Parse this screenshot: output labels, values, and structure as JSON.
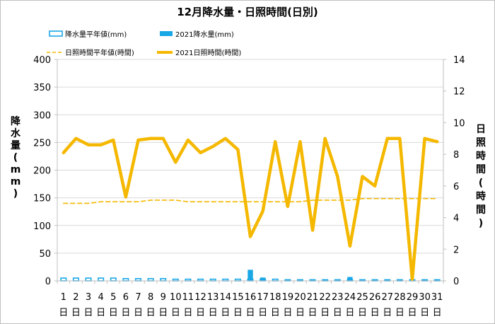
{
  "chart_data": {
    "type": "bar+line",
    "title": "12月降水量・日照時間(日別)",
    "categories": [
      "1",
      "2",
      "3",
      "4",
      "5",
      "6",
      "7",
      "8",
      "9",
      "10",
      "11",
      "12",
      "13",
      "14",
      "15",
      "16",
      "17",
      "18",
      "19",
      "20",
      "21",
      "22",
      "23",
      "24",
      "25",
      "26",
      "27",
      "28",
      "29",
      "30",
      "31"
    ],
    "category_suffix": "日",
    "y_left": {
      "label": "降水量(mm)",
      "label_chars": [
        "降",
        "水",
        "量",
        "(",
        "m",
        "m",
        ")"
      ],
      "min": 0,
      "max": 400,
      "step": 50,
      "ticks": [
        "0",
        "50",
        "100",
        "150",
        "200",
        "250",
        "300",
        "350",
        "400"
      ]
    },
    "y_right": {
      "label": "日照時間(時間)",
      "label_chars": [
        "日",
        "照",
        "時",
        "間",
        "(",
        "時",
        "間",
        ")"
      ],
      "min": 0,
      "max": 14,
      "step": 2,
      "ticks": [
        "0",
        "2",
        "4",
        "6",
        "8",
        "10",
        "12",
        "14"
      ]
    },
    "legend": {
      "items": [
        {
          "label": "降水量平年値(mm)",
          "kind": "bar-outline",
          "color": "#1aa7e6"
        },
        {
          "label": "2021降水量(mm)",
          "kind": "bar-solid",
          "color": "#1aa7e6"
        },
        {
          "label": "日照時間平年値(時間)",
          "kind": "line-dashed",
          "color": "#f5b800"
        },
        {
          "label": "2021日照時間(時間)",
          "kind": "line-solid",
          "color": "#f5b800"
        }
      ]
    },
    "series": [
      {
        "name": "降水量平年値(mm)",
        "axis": "left",
        "type": "bar",
        "style": "outline",
        "color": "#1aa7e6",
        "values": [
          5,
          5,
          5,
          5,
          5,
          4,
          4,
          4,
          4,
          3,
          3,
          3,
          3,
          3,
          3,
          3,
          3,
          3,
          2,
          2,
          2,
          2,
          2,
          2,
          2,
          2,
          2,
          2,
          2,
          2,
          2
        ]
      },
      {
        "name": "2021降水量(mm)",
        "axis": "left",
        "type": "bar",
        "style": "solid",
        "color": "#1aa7e6",
        "values": [
          0,
          0,
          0,
          0,
          0,
          0,
          0,
          0,
          0,
          0,
          0,
          0,
          0,
          0,
          0,
          20,
          6,
          0,
          0,
          0,
          0,
          0,
          0,
          7,
          0,
          0,
          0,
          0,
          0,
          0,
          0
        ]
      },
      {
        "name": "日照時間平年値(時間)",
        "axis": "right",
        "type": "line",
        "style": "dashed",
        "color": "#f5b800",
        "values": [
          4.9,
          4.9,
          4.9,
          5.0,
          5.0,
          5.0,
          5.0,
          5.1,
          5.1,
          5.1,
          5.0,
          5.0,
          5.0,
          5.0,
          5.0,
          5.0,
          5.0,
          5.0,
          5.0,
          5.0,
          5.1,
          5.1,
          5.1,
          5.1,
          5.2,
          5.2,
          5.2,
          5.2,
          5.2,
          5.2,
          5.2
        ]
      },
      {
        "name": "2021日照時間(時間)",
        "axis": "right",
        "type": "line",
        "style": "solid",
        "color": "#f5b800",
        "values": [
          8.1,
          9.0,
          8.6,
          8.6,
          8.9,
          5.3,
          8.9,
          9.0,
          9.0,
          7.5,
          8.9,
          8.1,
          8.5,
          9.0,
          8.3,
          2.8,
          4.4,
          8.8,
          4.7,
          8.8,
          3.2,
          9.0,
          6.6,
          2.2,
          6.6,
          6.0,
          9.0,
          9.0,
          0.1,
          9.0,
          8.8
        ]
      }
    ],
    "colors": {
      "grid": "#d9d9d9",
      "axis": "#bfbfbf",
      "rain": "#1aa7e6",
      "sun": "#f5b800"
    }
  }
}
